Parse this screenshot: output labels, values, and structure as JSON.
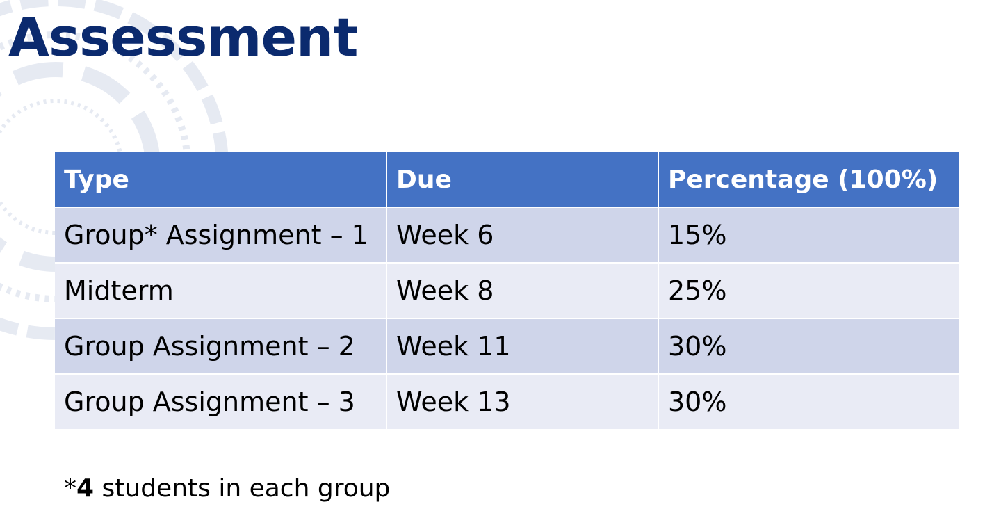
{
  "slide": {
    "title": "Assessment",
    "table": {
      "headers": [
        "Type",
        "Due",
        "Percentage (100%)"
      ],
      "rows": [
        [
          "Group* Assignment – 1",
          "Week 6",
          "15%"
        ],
        [
          "Midterm",
          "Week 8",
          "25%"
        ],
        [
          "Group Assignment – 2",
          "Week 11",
          "30%"
        ],
        [
          "Group Assignment – 3",
          "Week 13",
          "30%"
        ]
      ]
    },
    "footnote": {
      "prefix": "*",
      "count": "4",
      "suffix": " students in each group"
    }
  },
  "colors": {
    "title": "#0b2a6e",
    "header_bg": "#4472c4",
    "row_band_dark": "#cfd5ea",
    "row_band_light": "#e9ebf5"
  }
}
